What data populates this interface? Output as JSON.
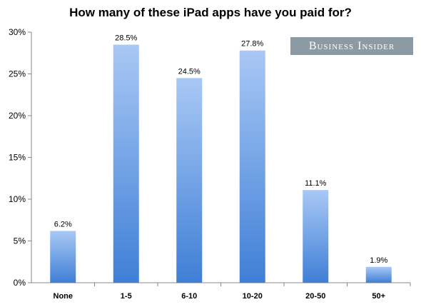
{
  "chart_data": {
    "type": "bar",
    "title": "How many of these iPad apps have you paid for?",
    "categories": [
      "None",
      "1-5",
      "6-10",
      "10-20",
      "20-50",
      "50+"
    ],
    "values": [
      6.2,
      28.5,
      24.5,
      27.8,
      11.1,
      1.9
    ],
    "data_labels": [
      "6.2%",
      "28.5%",
      "24.5%",
      "27.8%",
      "11.1%",
      "1.9%"
    ],
    "y_ticks": [
      0,
      5,
      10,
      15,
      20,
      25,
      30
    ],
    "y_tick_labels": [
      "0%",
      "5%",
      "10%",
      "15%",
      "20%",
      "25%",
      "30%"
    ],
    "ylim": [
      0,
      30
    ],
    "xlabel": "",
    "ylabel": "",
    "grid": false,
    "bar_color_top": "#a9c8f5",
    "bar_color_bottom": "#3f7fd6"
  },
  "watermark": "Business Insider"
}
